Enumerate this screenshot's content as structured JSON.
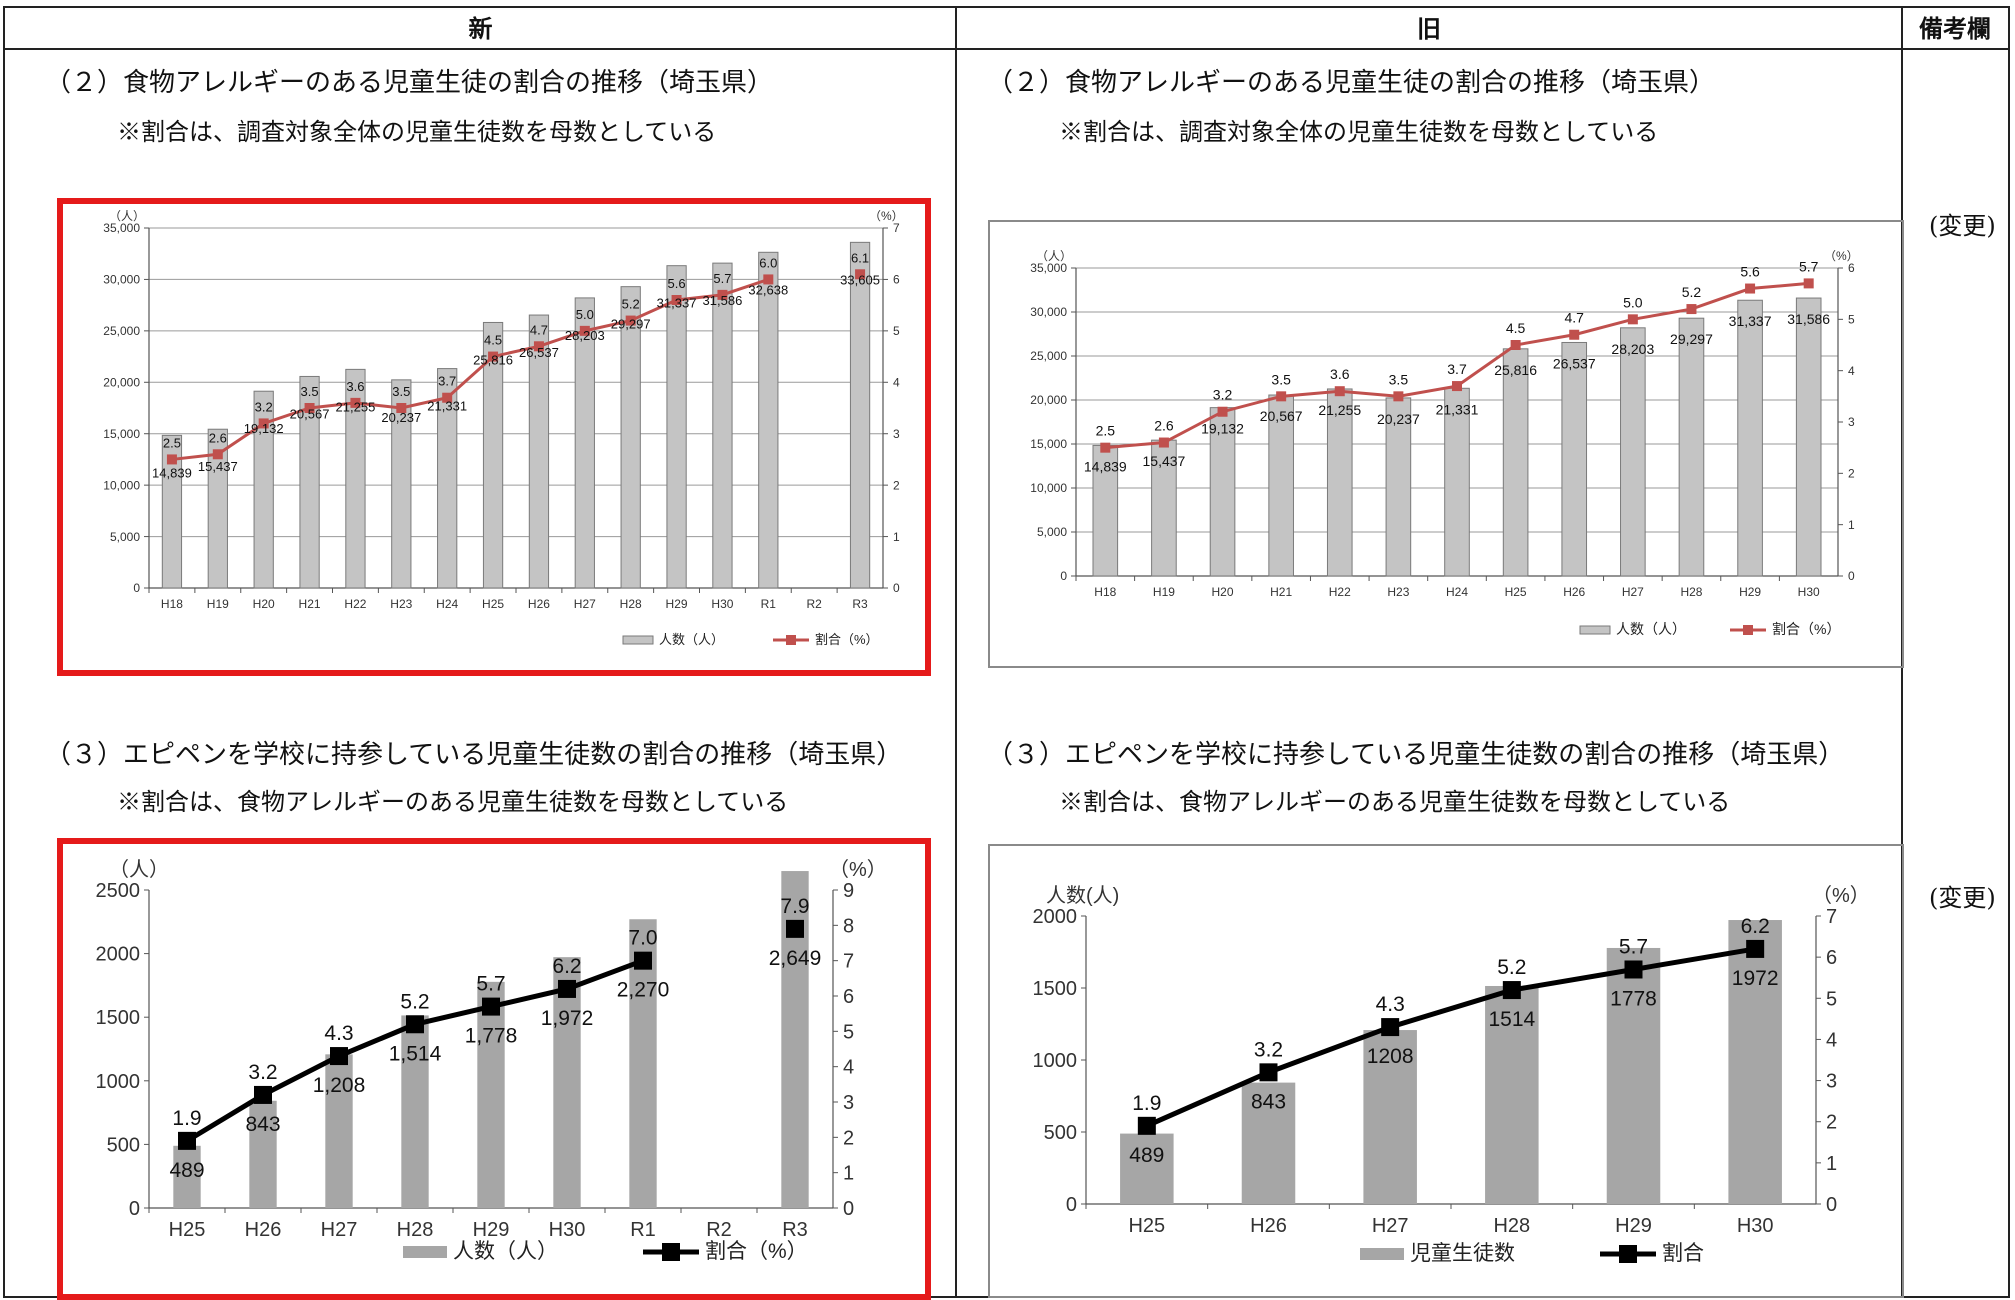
{
  "table": {
    "header": {
      "new": "新",
      "old": "旧",
      "remarks": "備考欄"
    },
    "remarks": [
      "(変更)",
      "(変更)"
    ]
  },
  "sections": {
    "new": {
      "s2_title": "（２）食物アレルギーのある児童生徒の割合の推移（埼玉県）",
      "s2_note": "※割合は、調査対象全体の児童生徒数を母数としている",
      "s3_title": "（３）エピペンを学校に持参している児童生徒数の割合の推移（埼玉県）",
      "s3_note": "※割合は、食物アレルギーのある児童生徒数を母数としている"
    },
    "old": {
      "s2_title": "（２）食物アレルギーのある児童生徒の割合の推移（埼玉県）",
      "s2_note": "※割合は、調査対象全体の児童生徒数を母数としている",
      "s3_title": "（３）エピペンを学校に持参している児童生徒数の割合の推移（埼玉県）",
      "s3_note": "※割合は、食物アレルギーのある児童生徒数を母数としている"
    }
  },
  "chart_data": [
    {
      "id": "new-allergy",
      "type": "bar",
      "categories": [
        "H18",
        "H19",
        "H20",
        "H21",
        "H22",
        "H23",
        "H24",
        "H25",
        "H26",
        "H27",
        "H28",
        "H29",
        "H30",
        "R1",
        "R2",
        "R3"
      ],
      "series": [
        {
          "name": "人数（人）",
          "type": "bar",
          "axis": "left",
          "values": [
            14839,
            15437,
            19132,
            20567,
            21255,
            20237,
            21331,
            25816,
            26537,
            28203,
            29297,
            31337,
            31586,
            32638,
            null,
            33605
          ],
          "labels": [
            "14,839",
            "15,437",
            "19,132",
            "20,567",
            "21,255",
            "20,237",
            "21,331",
            "25,816",
            "26,537",
            "28,203",
            "29,297",
            "31,337",
            "31,586",
            "32,638",
            "",
            "33,605"
          ]
        },
        {
          "name": "割合（%）",
          "type": "line",
          "axis": "right",
          "values": [
            2.5,
            2.6,
            3.2,
            3.5,
            3.6,
            3.5,
            3.7,
            4.5,
            4.7,
            5.0,
            5.2,
            5.6,
            5.7,
            6.0,
            null,
            6.1
          ],
          "labels": [
            "2.5",
            "2.6",
            "3.2",
            "3.5",
            "3.6",
            "3.5",
            "3.7",
            "4.5",
            "4.7",
            "5.0",
            "5.2",
            "5.6",
            "5.7",
            "6.0",
            "",
            "6.1"
          ]
        }
      ],
      "ylabel_left": "（人）",
      "ylabel_right": "（%）",
      "ylim_left": [
        0,
        35000
      ],
      "yticks_left": [
        "0",
        "5,000",
        "10,000",
        "15,000",
        "20,000",
        "25,000",
        "30,000",
        "35,000"
      ],
      "ylim_right": [
        0,
        7
      ],
      "yticks_right": [
        "0",
        "1",
        "2",
        "3",
        "4",
        "5",
        "6",
        "7"
      ],
      "grid": true,
      "legend": "bottom-right",
      "colors": {
        "bar": "#c4c4c4",
        "line": "#c0504d"
      }
    },
    {
      "id": "old-allergy",
      "type": "bar",
      "categories": [
        "H18",
        "H19",
        "H20",
        "H21",
        "H22",
        "H23",
        "H24",
        "H25",
        "H26",
        "H27",
        "H28",
        "H29",
        "H30"
      ],
      "series": [
        {
          "name": "人数（人）",
          "type": "bar",
          "axis": "left",
          "values": [
            14839,
            15437,
            19132,
            20567,
            21255,
            20237,
            21331,
            25816,
            26537,
            28203,
            29297,
            31337,
            31586
          ],
          "labels": [
            "14,839",
            "15,437",
            "19,132",
            "20,567",
            "21,255",
            "20,237",
            "21,331",
            "25,816",
            "26,537",
            "28,203",
            "29,297",
            "31,337",
            "31,586"
          ]
        },
        {
          "name": "割合（%）",
          "type": "line",
          "axis": "right",
          "values": [
            2.5,
            2.6,
            3.2,
            3.5,
            3.6,
            3.5,
            3.7,
            4.5,
            4.7,
            5.0,
            5.2,
            5.6,
            5.7
          ],
          "labels": [
            "2.5",
            "2.6",
            "3.2",
            "3.5",
            "3.6",
            "3.5",
            "3.7",
            "4.5",
            "4.7",
            "5.0",
            "5.2",
            "5.6",
            "5.7"
          ]
        }
      ],
      "ylabel_left": "（人）",
      "ylabel_right": "（%）",
      "ylim_left": [
        0,
        35000
      ],
      "yticks_left": [
        "0",
        "5,000",
        "10,000",
        "15,000",
        "20,000",
        "25,000",
        "30,000",
        "35,000"
      ],
      "ylim_right": [
        0,
        6
      ],
      "yticks_right": [
        "0",
        "1",
        "2",
        "3",
        "4",
        "5",
        "6"
      ],
      "grid": true,
      "legend": "bottom-right",
      "colors": {
        "bar": "#c4c4c4",
        "line": "#c0504d"
      }
    },
    {
      "id": "new-epipen",
      "type": "bar",
      "categories": [
        "H25",
        "H26",
        "H27",
        "H28",
        "H29",
        "H30",
        "R1",
        "R2",
        "R3"
      ],
      "series": [
        {
          "name": "人数（人）",
          "type": "bar",
          "axis": "left",
          "values": [
            489,
            843,
            1208,
            1514,
            1778,
            1972,
            2270,
            null,
            2649
          ],
          "labels": [
            "489",
            "843",
            "1,208",
            "1,514",
            "1,778",
            "1,972",
            "2,270",
            "",
            "2,649"
          ]
        },
        {
          "name": "割合（%）",
          "type": "line",
          "axis": "right",
          "values": [
            1.9,
            3.2,
            4.3,
            5.2,
            5.7,
            6.2,
            7.0,
            null,
            7.9
          ],
          "labels": [
            "1.9",
            "3.2",
            "4.3",
            "5.2",
            "5.7",
            "6.2",
            "7.0",
            "",
            "7.9"
          ]
        }
      ],
      "ylabel_left": "（人）",
      "ylabel_right": "（%）",
      "ylim_left": [
        0,
        2500
      ],
      "yticks_left": [
        "0",
        "500",
        "1000",
        "1500",
        "2000",
        "2500"
      ],
      "ylim_right": [
        0,
        9
      ],
      "yticks_right": [
        "0",
        "1",
        "2",
        "3",
        "4",
        "5",
        "6",
        "7",
        "8",
        "9"
      ],
      "grid": false,
      "legend": "bottom",
      "colors": {
        "bar": "#a6a6a6",
        "line": "#000000"
      }
    },
    {
      "id": "old-epipen",
      "type": "bar",
      "categories": [
        "H25",
        "H26",
        "H27",
        "H28",
        "H29",
        "H30"
      ],
      "series": [
        {
          "name": "児童生徒数",
          "type": "bar",
          "axis": "left",
          "values": [
            489,
            843,
            1208,
            1514,
            1778,
            1972
          ],
          "labels": [
            "489",
            "843",
            "1208",
            "1514",
            "1778",
            "1972"
          ]
        },
        {
          "name": "割合",
          "type": "line",
          "axis": "right",
          "values": [
            1.9,
            3.2,
            4.3,
            5.2,
            5.7,
            6.2
          ],
          "labels": [
            "1.9",
            "3.2",
            "4.3",
            "5.2",
            "5.7",
            "6.2"
          ]
        }
      ],
      "ylabel_left": "人数(人)",
      "ylabel_right": "（%）",
      "ylim_left": [
        0,
        2000
      ],
      "yticks_left": [
        "0",
        "500",
        "1000",
        "1500",
        "2000"
      ],
      "ylim_right": [
        0,
        7
      ],
      "yticks_right": [
        "0",
        "1",
        "2",
        "3",
        "4",
        "5",
        "6",
        "7"
      ],
      "grid": false,
      "legend": "bottom",
      "colors": {
        "bar": "#a6a6a6",
        "line": "#000000"
      }
    }
  ]
}
